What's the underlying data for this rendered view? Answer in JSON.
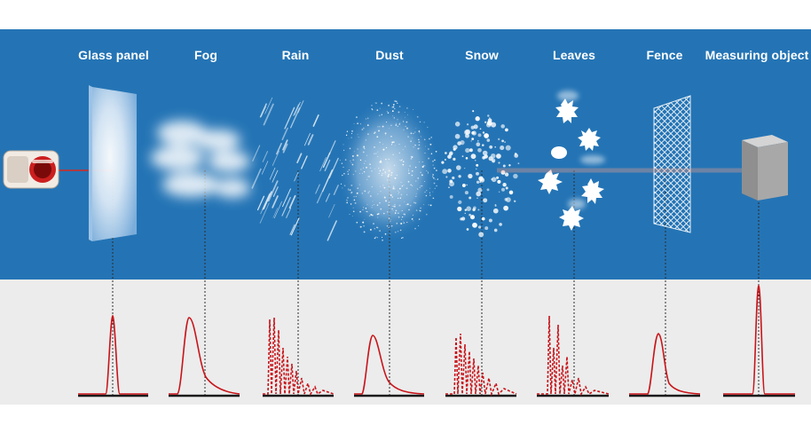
{
  "labels": {
    "glass": "Glass panel",
    "fog": "Fog",
    "rain": "Rain",
    "dust": "Dust",
    "snow": "Snow",
    "leaves": "Leaves",
    "fence": "Fence",
    "object": "Measuring object"
  },
  "colors": {
    "background_blue": "#2474b5",
    "panel_grey": "#ececec",
    "laser_red": "#d9261c",
    "pulse_red": "#c8141a",
    "baseline": "#1a1a1a"
  },
  "icons": {
    "sensor": "lidar-sensor-icon",
    "leaf": "maple-leaf-icon"
  }
}
